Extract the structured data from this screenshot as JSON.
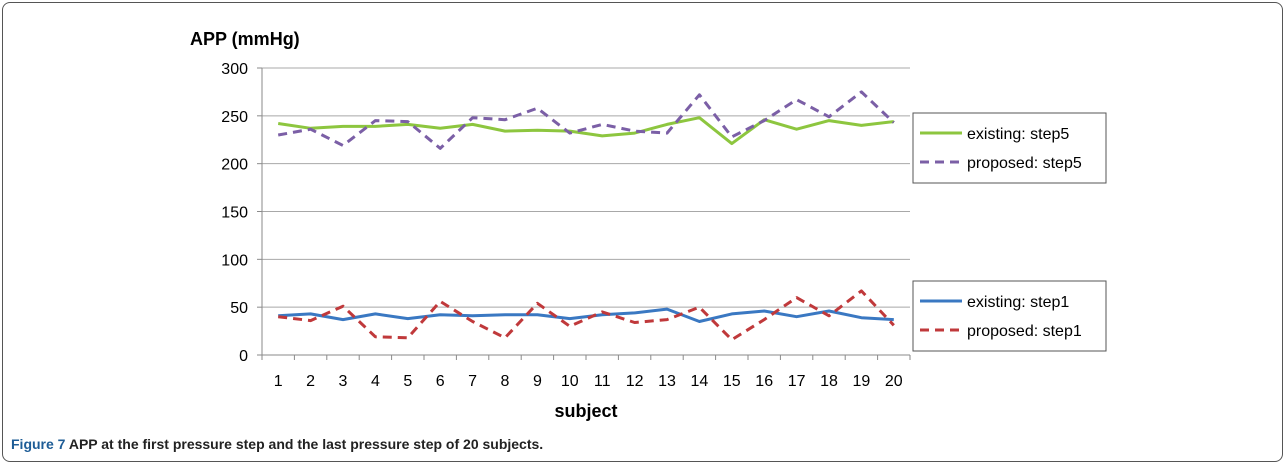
{
  "chart_data": {
    "type": "line",
    "ylabel": "APP (mmHg)",
    "xlabel": "subject",
    "x": [
      1,
      2,
      3,
      4,
      5,
      6,
      7,
      8,
      9,
      10,
      11,
      12,
      13,
      14,
      15,
      16,
      17,
      18,
      19,
      20
    ],
    "ylim": [
      0,
      300
    ],
    "yticks": [
      0,
      50,
      100,
      150,
      200,
      250,
      300
    ],
    "grid": true,
    "legend_placement": "right",
    "series": [
      {
        "name": "existing: step5",
        "color": "#8dc63f",
        "dash": "solid",
        "values": [
          242,
          237,
          239,
          239,
          241,
          237,
          241,
          234,
          235,
          234,
          229,
          232,
          241,
          248,
          221,
          246,
          236,
          245,
          240,
          244
        ]
      },
      {
        "name": "proposed: step5",
        "color": "#7b5fa6",
        "dash": "dashed",
        "values": [
          230,
          236,
          219,
          245,
          244,
          216,
          248,
          246,
          258,
          232,
          241,
          234,
          232,
          272,
          228,
          245,
          267,
          249,
          275,
          243
        ]
      },
      {
        "name": "existing: step1",
        "color": "#3a78c2",
        "dash": "solid",
        "values": [
          41,
          43,
          37,
          43,
          38,
          42,
          41,
          42,
          42,
          38,
          42,
          44,
          48,
          35,
          43,
          46,
          40,
          46,
          39,
          37
        ]
      },
      {
        "name": "proposed: step1",
        "color": "#c0393b",
        "dash": "dashed",
        "values": [
          40,
          36,
          51,
          19,
          18,
          56,
          35,
          18,
          54,
          30,
          45,
          34,
          37,
          50,
          16,
          37,
          60,
          41,
          67,
          31
        ]
      }
    ]
  },
  "caption": {
    "label": "Figure 7",
    "text": " APP at the first pressure step and the last pressure step of 20 subjects."
  },
  "colors": {
    "axis": "#8a8a8a",
    "grid": "#a8a8a8",
    "frame": "#555555",
    "caption_label": "#1d5c96"
  }
}
